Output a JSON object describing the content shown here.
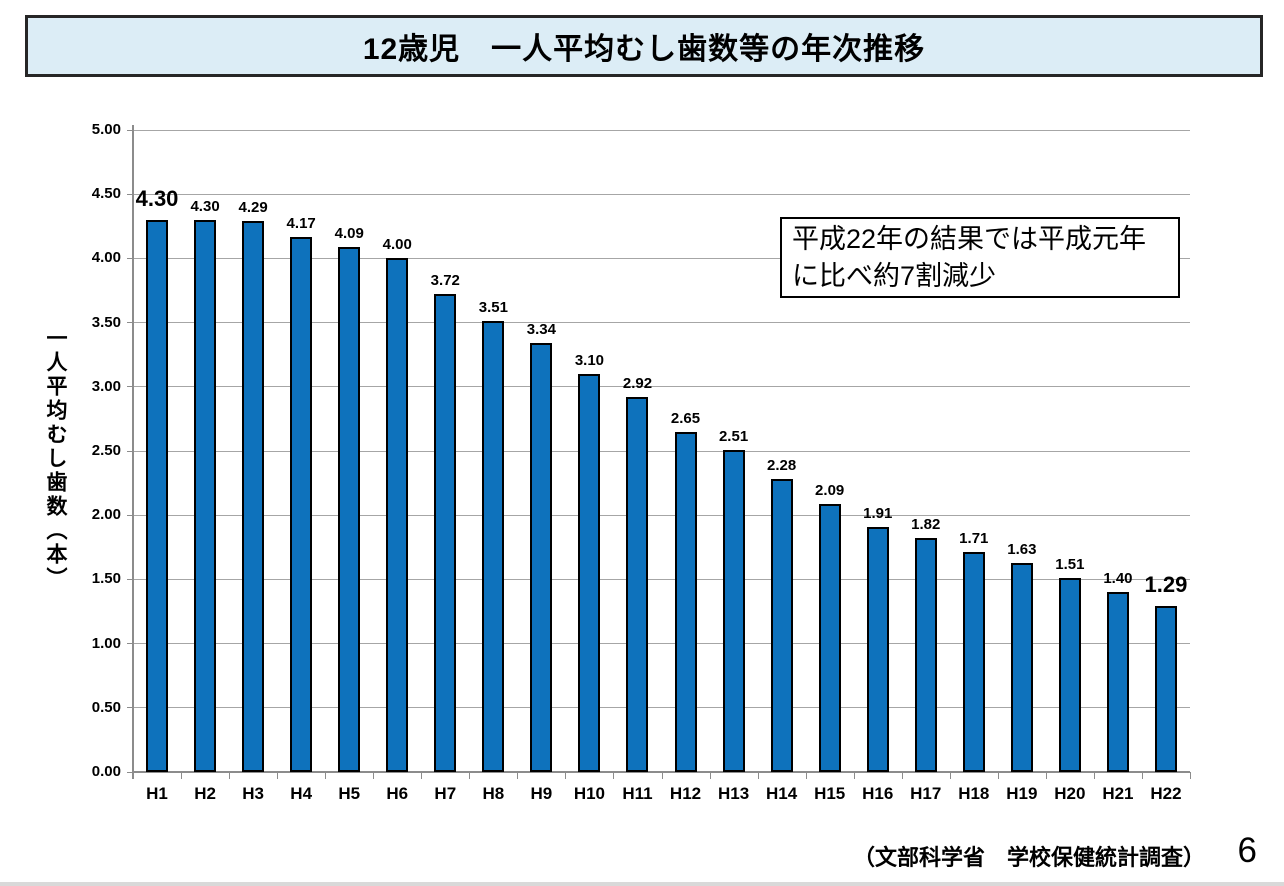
{
  "title": "12歳児　一人平均むし歯数等の年次推移",
  "chart_data": {
    "type": "bar",
    "categories": [
      "H1",
      "H2",
      "H3",
      "H4",
      "H5",
      "H6",
      "H7",
      "H8",
      "H9",
      "H10",
      "H11",
      "H12",
      "H13",
      "H14",
      "H15",
      "H16",
      "H17",
      "H18",
      "H19",
      "H20",
      "H21",
      "H22"
    ],
    "values": [
      4.3,
      4.3,
      4.29,
      4.17,
      4.09,
      4.0,
      3.72,
      3.51,
      3.34,
      3.1,
      2.92,
      2.65,
      2.51,
      2.28,
      2.09,
      1.91,
      1.82,
      1.71,
      1.63,
      1.51,
      1.4,
      1.29
    ],
    "value_labels": [
      "4.30",
      "4.30",
      "4.29",
      "4.17",
      "4.09",
      "4.00",
      "3.72",
      "3.51",
      "3.34",
      "3.10",
      "2.92",
      "2.65",
      "2.51",
      "2.28",
      "2.09",
      "1.91",
      "1.82",
      "1.71",
      "1.63",
      "1.51",
      "1.40",
      "1.29"
    ],
    "emphasized_indices": [
      0,
      21
    ],
    "title": "12歳児　一人平均むし歯数等の年次推移",
    "xlabel": "",
    "ylabel": "一人平均むし歯数（本）",
    "ylim": [
      0,
      5
    ],
    "ytick_labels": [
      "0.00",
      "0.50",
      "1.00",
      "1.50",
      "2.00",
      "2.50",
      "3.00",
      "3.50",
      "4.00",
      "4.50",
      "5.00"
    ],
    "grid": "horizontal",
    "legend": "none",
    "bar_color": "#0e72bc",
    "bar_border_color": "#000000",
    "gridline_color": "#a6a6a6",
    "annotation": {
      "line1": "平成22年の結果では平成元年",
      "line2": "に比べ約7割減少"
    }
  },
  "footer": {
    "source": "（文部科学省　学校保健統計調査）",
    "page": "6"
  }
}
